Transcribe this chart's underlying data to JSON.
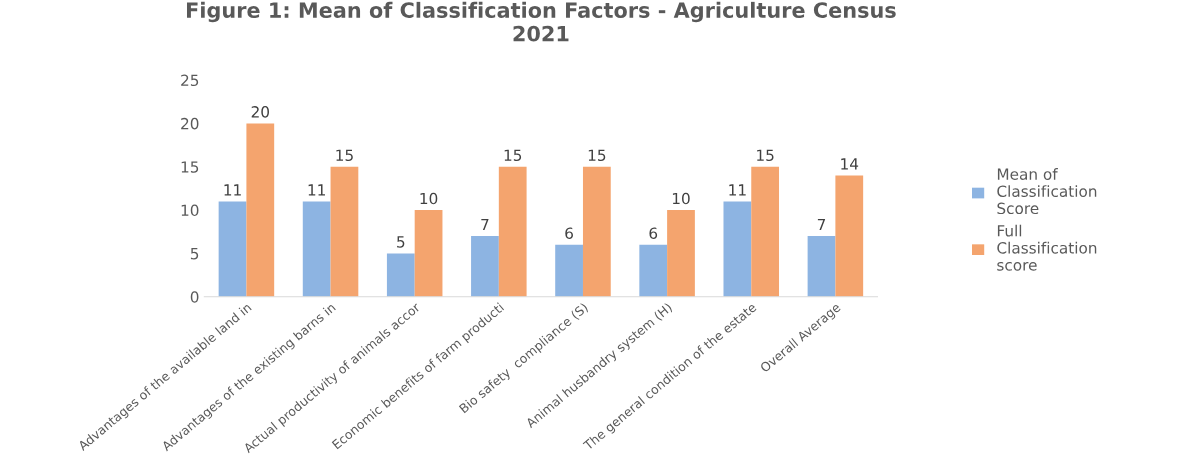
{
  "chart_data": {
    "type": "bar",
    "title": "Figure 1: Mean of Classification Factors - Agriculture Census\n2021",
    "categories": [
      "Advantages of the available land in",
      "Advantages of the existing barns in",
      "Actual productivity of animals accor",
      "Economic benefits of farm producti",
      "Bio safety  compliance (S)",
      "Animal husbandry system (H)",
      "The general condition of the estate",
      "Overall Average"
    ],
    "series": [
      {
        "name": "Mean of\nClassification\nScore",
        "color": "#8db4e2",
        "values": [
          11,
          11,
          5,
          7,
          6,
          6,
          11,
          7
        ]
      },
      {
        "name": "Full\nClassification\nscore",
        "color": "#f4a46e",
        "values": [
          20,
          15,
          10,
          15,
          15,
          10,
          15,
          14
        ]
      }
    ],
    "ylim": [
      0,
      25
    ],
    "yticks": [
      0,
      5,
      10,
      15,
      20,
      25
    ],
    "grid": false,
    "legend": "right",
    "data_labels": true
  }
}
